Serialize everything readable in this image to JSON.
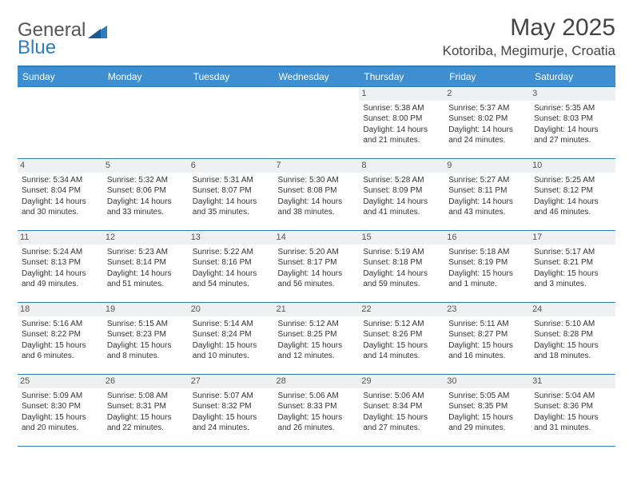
{
  "brand": {
    "first": "General",
    "second": "Blue"
  },
  "title": "May 2025",
  "location": "Kotoriba, Megimurje, Croatia",
  "colors": {
    "header_bg": "#3d8fd1",
    "header_text": "#ffffff",
    "border": "#2f7bbf",
    "daynum_bg": "#eef0f2",
    "body_text": "#333333",
    "brand_gray": "#555555",
    "brand_blue": "#2f7bbf",
    "background": "#ffffff"
  },
  "dayHeaders": [
    "Sunday",
    "Monday",
    "Tuesday",
    "Wednesday",
    "Thursday",
    "Friday",
    "Saturday"
  ],
  "weeks": [
    [
      {
        "n": "",
        "lines": []
      },
      {
        "n": "",
        "lines": []
      },
      {
        "n": "",
        "lines": []
      },
      {
        "n": "",
        "lines": []
      },
      {
        "n": "1",
        "lines": [
          "Sunrise: 5:38 AM",
          "Sunset: 8:00 PM",
          "Daylight: 14 hours and 21 minutes."
        ]
      },
      {
        "n": "2",
        "lines": [
          "Sunrise: 5:37 AM",
          "Sunset: 8:02 PM",
          "Daylight: 14 hours and 24 minutes."
        ]
      },
      {
        "n": "3",
        "lines": [
          "Sunrise: 5:35 AM",
          "Sunset: 8:03 PM",
          "Daylight: 14 hours and 27 minutes."
        ]
      }
    ],
    [
      {
        "n": "4",
        "lines": [
          "Sunrise: 5:34 AM",
          "Sunset: 8:04 PM",
          "Daylight: 14 hours and 30 minutes."
        ]
      },
      {
        "n": "5",
        "lines": [
          "Sunrise: 5:32 AM",
          "Sunset: 8:06 PM",
          "Daylight: 14 hours and 33 minutes."
        ]
      },
      {
        "n": "6",
        "lines": [
          "Sunrise: 5:31 AM",
          "Sunset: 8:07 PM",
          "Daylight: 14 hours and 35 minutes."
        ]
      },
      {
        "n": "7",
        "lines": [
          "Sunrise: 5:30 AM",
          "Sunset: 8:08 PM",
          "Daylight: 14 hours and 38 minutes."
        ]
      },
      {
        "n": "8",
        "lines": [
          "Sunrise: 5:28 AM",
          "Sunset: 8:09 PM",
          "Daylight: 14 hours and 41 minutes."
        ]
      },
      {
        "n": "9",
        "lines": [
          "Sunrise: 5:27 AM",
          "Sunset: 8:11 PM",
          "Daylight: 14 hours and 43 minutes."
        ]
      },
      {
        "n": "10",
        "lines": [
          "Sunrise: 5:25 AM",
          "Sunset: 8:12 PM",
          "Daylight: 14 hours and 46 minutes."
        ]
      }
    ],
    [
      {
        "n": "11",
        "lines": [
          "Sunrise: 5:24 AM",
          "Sunset: 8:13 PM",
          "Daylight: 14 hours and 49 minutes."
        ]
      },
      {
        "n": "12",
        "lines": [
          "Sunrise: 5:23 AM",
          "Sunset: 8:14 PM",
          "Daylight: 14 hours and 51 minutes."
        ]
      },
      {
        "n": "13",
        "lines": [
          "Sunrise: 5:22 AM",
          "Sunset: 8:16 PM",
          "Daylight: 14 hours and 54 minutes."
        ]
      },
      {
        "n": "14",
        "lines": [
          "Sunrise: 5:20 AM",
          "Sunset: 8:17 PM",
          "Daylight: 14 hours and 56 minutes."
        ]
      },
      {
        "n": "15",
        "lines": [
          "Sunrise: 5:19 AM",
          "Sunset: 8:18 PM",
          "Daylight: 14 hours and 59 minutes."
        ]
      },
      {
        "n": "16",
        "lines": [
          "Sunrise: 5:18 AM",
          "Sunset: 8:19 PM",
          "Daylight: 15 hours and 1 minute."
        ]
      },
      {
        "n": "17",
        "lines": [
          "Sunrise: 5:17 AM",
          "Sunset: 8:21 PM",
          "Daylight: 15 hours and 3 minutes."
        ]
      }
    ],
    [
      {
        "n": "18",
        "lines": [
          "Sunrise: 5:16 AM",
          "Sunset: 8:22 PM",
          "Daylight: 15 hours and 6 minutes."
        ]
      },
      {
        "n": "19",
        "lines": [
          "Sunrise: 5:15 AM",
          "Sunset: 8:23 PM",
          "Daylight: 15 hours and 8 minutes."
        ]
      },
      {
        "n": "20",
        "lines": [
          "Sunrise: 5:14 AM",
          "Sunset: 8:24 PM",
          "Daylight: 15 hours and 10 minutes."
        ]
      },
      {
        "n": "21",
        "lines": [
          "Sunrise: 5:12 AM",
          "Sunset: 8:25 PM",
          "Daylight: 15 hours and 12 minutes."
        ]
      },
      {
        "n": "22",
        "lines": [
          "Sunrise: 5:12 AM",
          "Sunset: 8:26 PM",
          "Daylight: 15 hours and 14 minutes."
        ]
      },
      {
        "n": "23",
        "lines": [
          "Sunrise: 5:11 AM",
          "Sunset: 8:27 PM",
          "Daylight: 15 hours and 16 minutes."
        ]
      },
      {
        "n": "24",
        "lines": [
          "Sunrise: 5:10 AM",
          "Sunset: 8:28 PM",
          "Daylight: 15 hours and 18 minutes."
        ]
      }
    ],
    [
      {
        "n": "25",
        "lines": [
          "Sunrise: 5:09 AM",
          "Sunset: 8:30 PM",
          "Daylight: 15 hours and 20 minutes."
        ]
      },
      {
        "n": "26",
        "lines": [
          "Sunrise: 5:08 AM",
          "Sunset: 8:31 PM",
          "Daylight: 15 hours and 22 minutes."
        ]
      },
      {
        "n": "27",
        "lines": [
          "Sunrise: 5:07 AM",
          "Sunset: 8:32 PM",
          "Daylight: 15 hours and 24 minutes."
        ]
      },
      {
        "n": "28",
        "lines": [
          "Sunrise: 5:06 AM",
          "Sunset: 8:33 PM",
          "Daylight: 15 hours and 26 minutes."
        ]
      },
      {
        "n": "29",
        "lines": [
          "Sunrise: 5:06 AM",
          "Sunset: 8:34 PM",
          "Daylight: 15 hours and 27 minutes."
        ]
      },
      {
        "n": "30",
        "lines": [
          "Sunrise: 5:05 AM",
          "Sunset: 8:35 PM",
          "Daylight: 15 hours and 29 minutes."
        ]
      },
      {
        "n": "31",
        "lines": [
          "Sunrise: 5:04 AM",
          "Sunset: 8:36 PM",
          "Daylight: 15 hours and 31 minutes."
        ]
      }
    ]
  ]
}
